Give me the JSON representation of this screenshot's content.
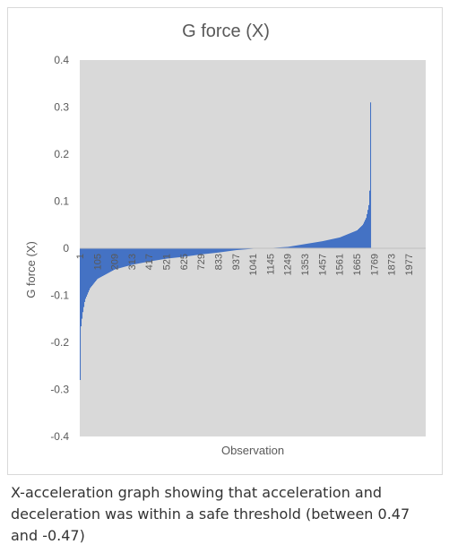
{
  "caption": "X-acceleration graph showing that acceleration and deceleration was within a safe threshold (between 0.47 and -0.47)",
  "chart_data": {
    "type": "bar",
    "title": "G force (X)",
    "xlabel": "Observation",
    "ylabel": "G force (X)",
    "ylim": [
      -0.4,
      0.4
    ],
    "y_ticks": [
      0.4,
      0.3,
      0.2,
      0.1,
      0,
      -0.1,
      -0.2,
      -0.3,
      -0.4
    ],
    "x_range": [
      1,
      2080
    ],
    "x_ticks": [
      1,
      105,
      209,
      313,
      417,
      521,
      625,
      729,
      833,
      937,
      1041,
      1145,
      1249,
      1353,
      1457,
      1561,
      1665,
      1769,
      1873,
      1977
    ],
    "n_observations": 1770,
    "grid": false,
    "plot_background": "#d9d9d9",
    "bar_color": "#4472c4",
    "series": [
      {
        "values_profile": [
          {
            "x": 1,
            "y": -0.28
          },
          {
            "x": 5,
            "y": -0.17
          },
          {
            "x": 15,
            "y": -0.14
          },
          {
            "x": 30,
            "y": -0.11
          },
          {
            "x": 60,
            "y": -0.085
          },
          {
            "x": 105,
            "y": -0.065
          },
          {
            "x": 209,
            "y": -0.045
          },
          {
            "x": 313,
            "y": -0.035
          },
          {
            "x": 417,
            "y": -0.028
          },
          {
            "x": 521,
            "y": -0.022
          },
          {
            "x": 625,
            "y": -0.018
          },
          {
            "x": 729,
            "y": -0.013
          },
          {
            "x": 833,
            "y": -0.009
          },
          {
            "x": 937,
            "y": -0.004
          },
          {
            "x": 1041,
            "y": -0.001
          },
          {
            "x": 1120,
            "y": 0
          },
          {
            "x": 1250,
            "y": 0.003
          },
          {
            "x": 1353,
            "y": 0.009
          },
          {
            "x": 1457,
            "y": 0.015
          },
          {
            "x": 1561,
            "y": 0.023
          },
          {
            "x": 1665,
            "y": 0.038
          },
          {
            "x": 1700,
            "y": 0.05
          },
          {
            "x": 1720,
            "y": 0.065
          },
          {
            "x": 1735,
            "y": 0.09
          },
          {
            "x": 1742,
            "y": 0.13
          },
          {
            "x": 1745,
            "y": 0.31
          },
          {
            "x": 1746,
            "y": 0
          }
        ]
      }
    ]
  }
}
